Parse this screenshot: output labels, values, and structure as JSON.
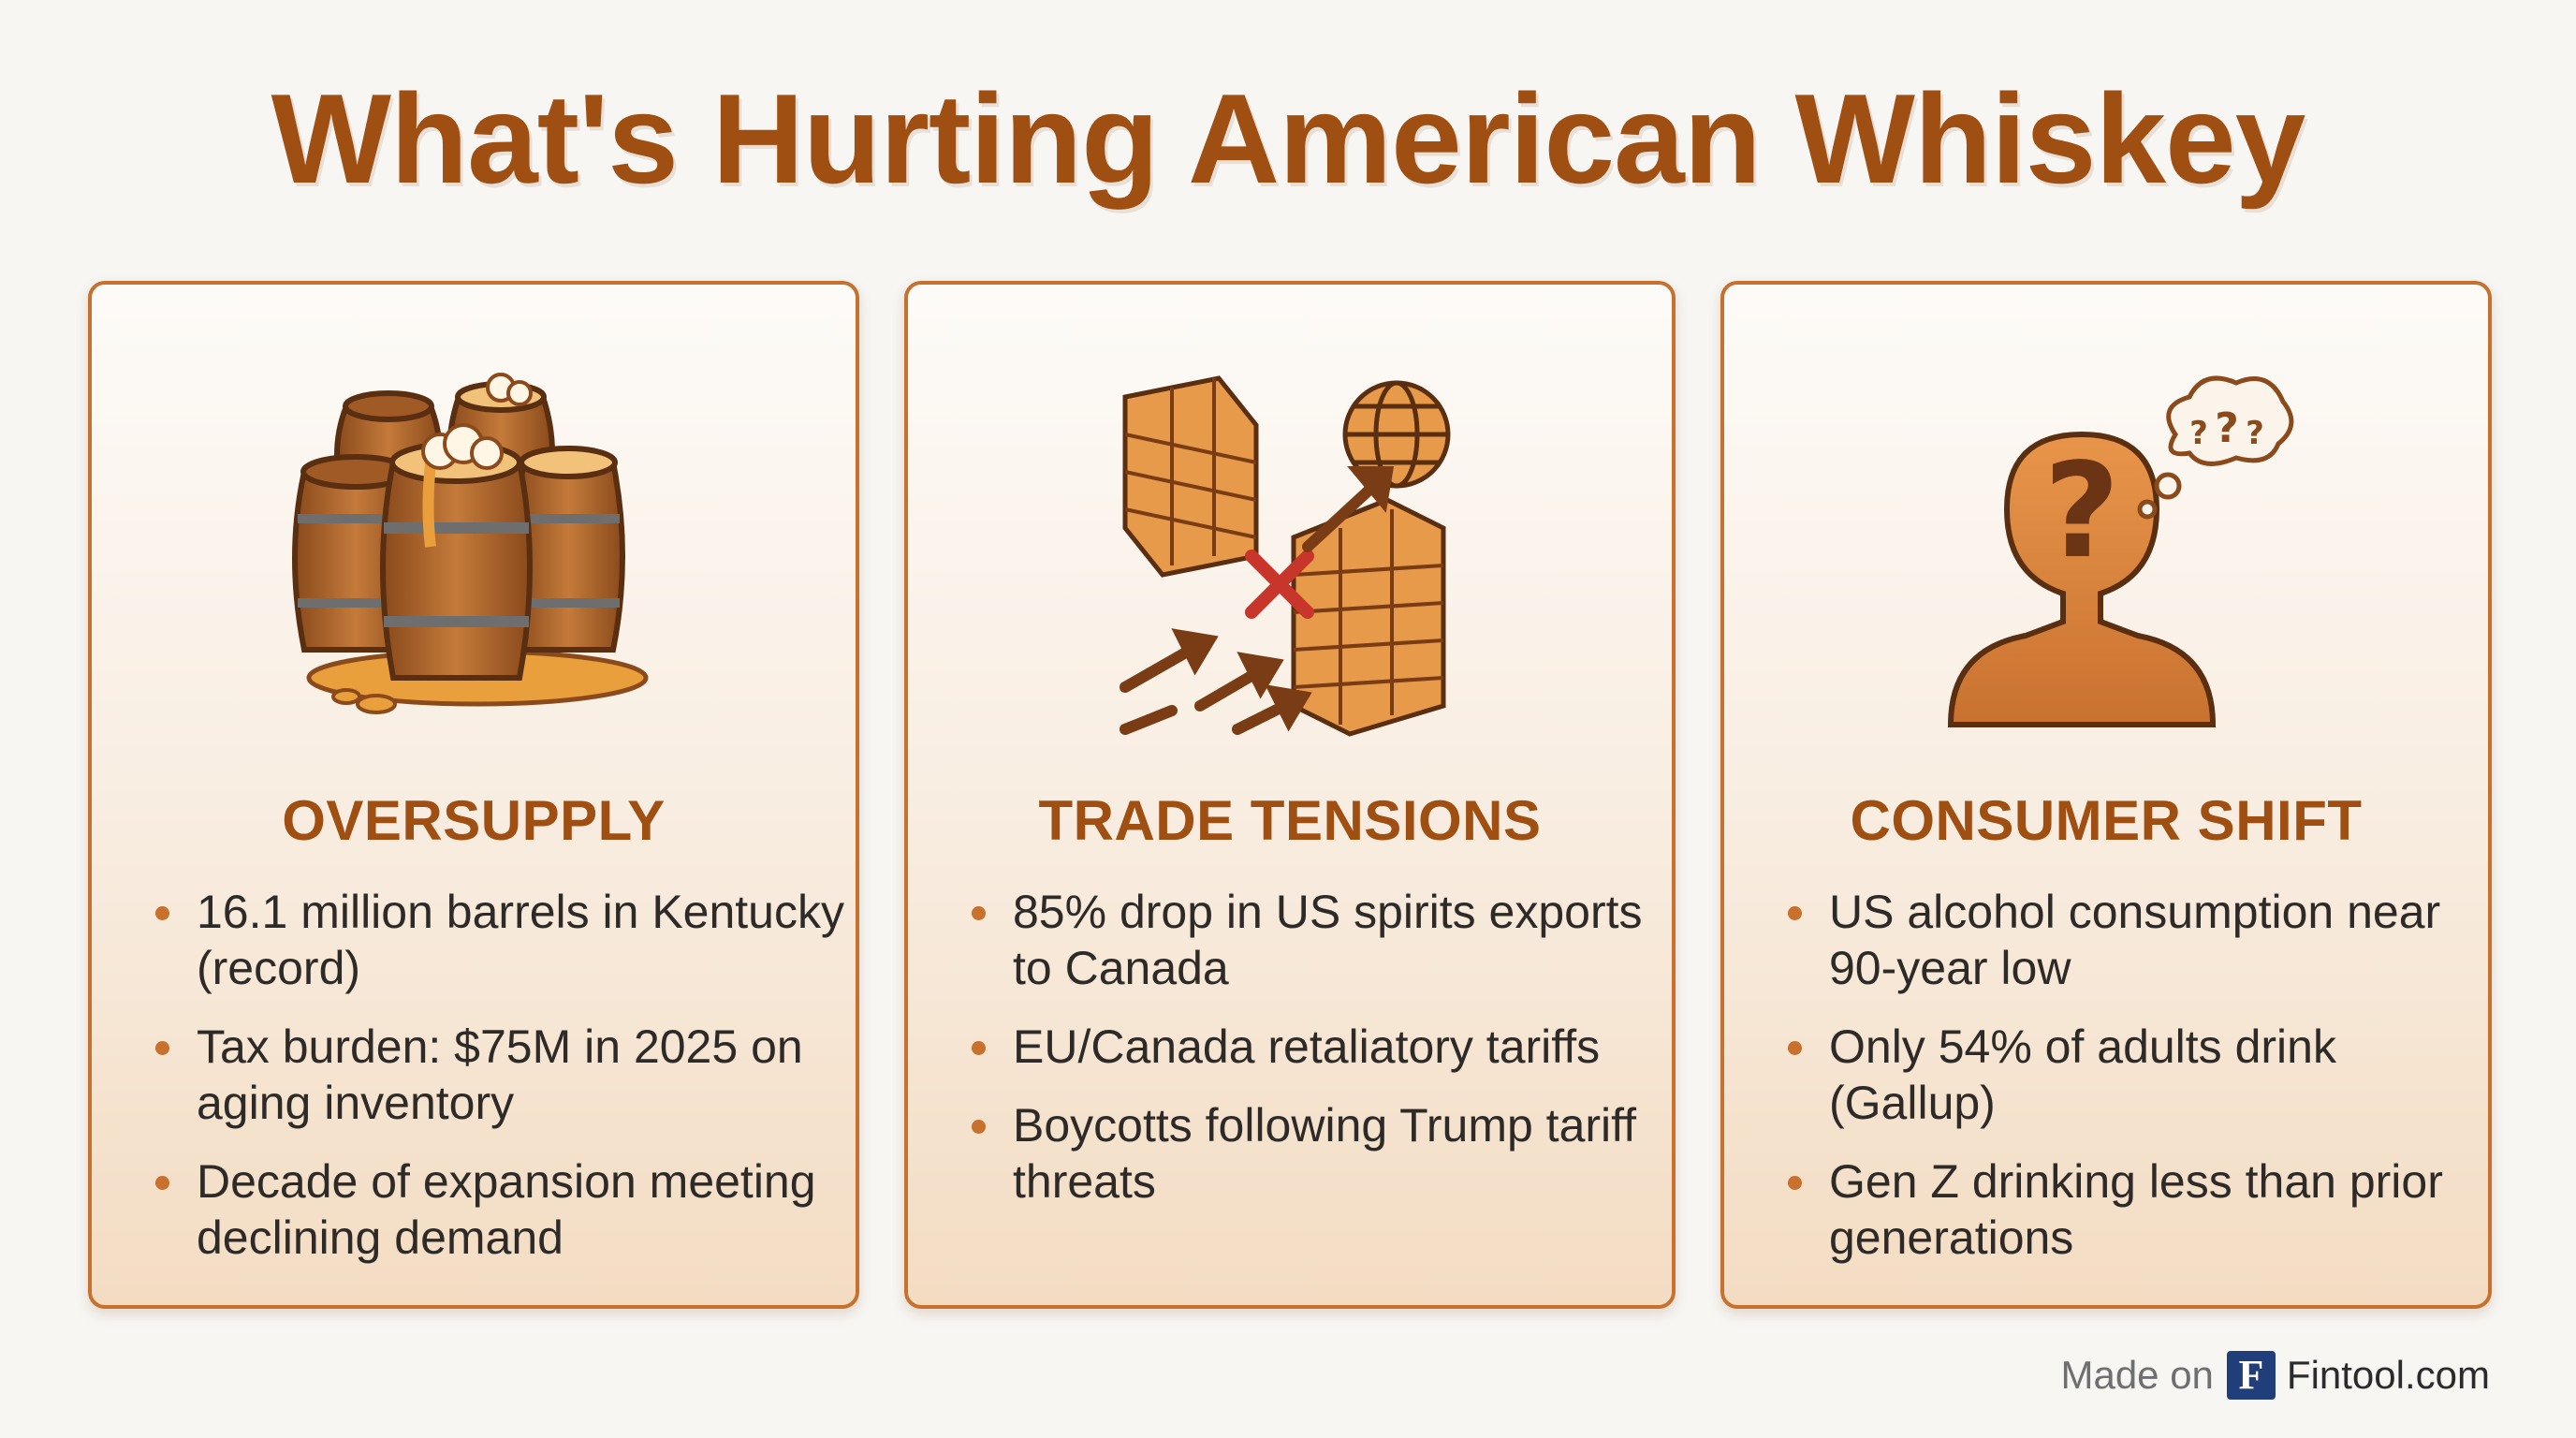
{
  "title": "What's Hurting American Whiskey",
  "cards": [
    {
      "icon": "whiskey-barrels-icon",
      "heading": "OVERSUPPLY",
      "bullets": [
        "16.1 million barrels in Kentucky (record)",
        "Tax burden: $75M in 2025 on aging inventory",
        "Decade of expansion meeting declining demand"
      ]
    },
    {
      "icon": "trade-wall-globe-icon",
      "heading": "TRADE TENSIONS",
      "bullets": [
        "85% drop in US spirits exports to Canada",
        "EU/Canada retaliatory tariffs",
        "Boycotts following Trump tariff threats"
      ]
    },
    {
      "icon": "confused-person-icon",
      "heading": "CONSUMER SHIFT",
      "bullets": [
        "US alcohol consumption near 90-year low",
        "Only 54% of adults drink (Gallup)",
        "Gen Z drinking less than prior generations"
      ]
    }
  ],
  "footer": {
    "made_on": "Made on",
    "logo_letter": "F",
    "brand": "Fintool.com"
  },
  "colors": {
    "accent": "#a04f12",
    "border": "#c8702e",
    "text": "#2e2a27",
    "logo_bg": "#1f3e7a"
  }
}
